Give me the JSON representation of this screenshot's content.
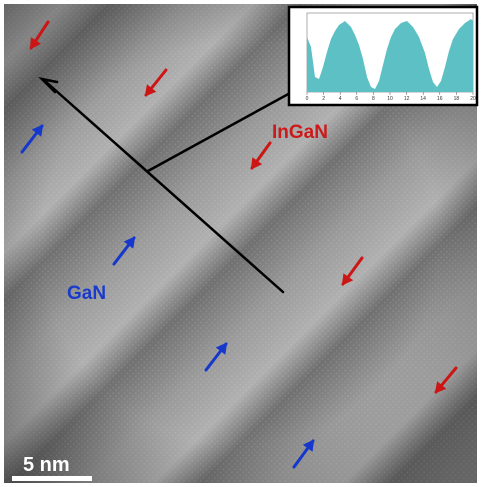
{
  "labels": {
    "ingan": "InGaN",
    "gan": "GaN",
    "scale_bar": "5 nm"
  },
  "colors": {
    "ingan_label": "#cc1a1a",
    "gan_label": "#1a3acc",
    "red_arrow": "#cc1515",
    "blue_arrow": "#1537cc",
    "profile_fill": "#5cc0c4",
    "line_profile": "#000000",
    "scale_bar": "#ffffff"
  },
  "arrow_icons": [
    "red-arrow-icon",
    "blue-arrow-icon"
  ],
  "inset_plot": {
    "description_visible": false,
    "x_tick_labels": [
      "0",
      "2",
      "4",
      "6",
      "8",
      "10",
      "12",
      "14",
      "16",
      "18",
      "20"
    ],
    "y_tick_labels": [
      "",
      "",
      "",
      "",
      "",
      "",
      "",
      "",
      ""
    ]
  }
}
